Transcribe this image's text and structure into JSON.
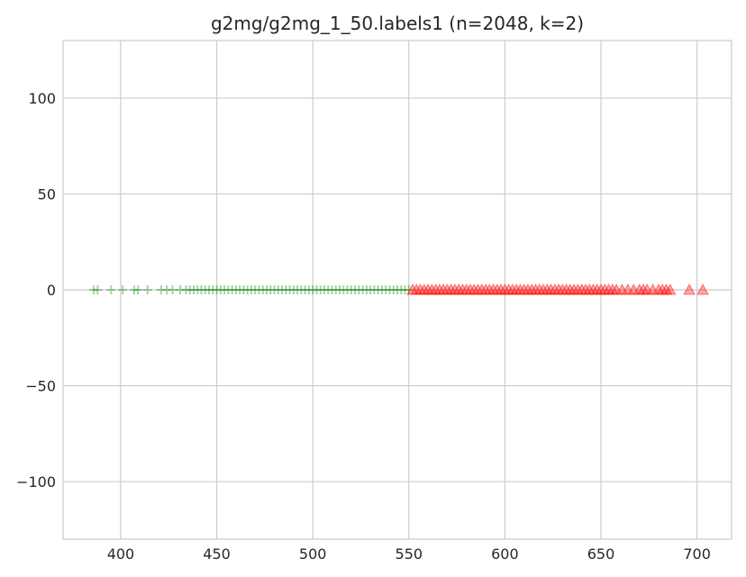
{
  "chart_data": {
    "type": "scatter",
    "title": "g2mg/g2mg_1_50.labels1 (n=2048, k=2)",
    "xlabel": "",
    "ylabel": "",
    "xlim": [
      370,
      718
    ],
    "ylim": [
      -130,
      130
    ],
    "x_ticks": [
      400,
      450,
      500,
      550,
      600,
      650,
      700
    ],
    "x_tick_labels": [
      "400",
      "450",
      "500",
      "550",
      "600",
      "650",
      "700"
    ],
    "y_ticks": [
      100,
      50,
      0,
      -50,
      -100
    ],
    "y_tick_labels": [
      "100",
      "50",
      "0",
      "−50",
      "−100"
    ],
    "grid": true,
    "legend": "none",
    "series": [
      {
        "marker": "plus",
        "color": "#008000",
        "opacity": 0.35,
        "y": 0,
        "x": [
          386,
          388,
          395,
          401,
          407,
          409,
          414,
          421,
          424,
          427,
          431,
          434,
          436,
          438,
          440,
          442,
          444,
          446,
          448,
          450,
          452,
          454,
          456,
          458,
          460,
          462,
          464,
          466,
          468,
          470,
          472,
          474,
          476,
          478,
          480,
          482,
          484,
          486,
          488,
          490,
          492,
          494,
          496,
          498,
          500,
          502,
          504,
          506,
          508,
          510,
          512,
          514,
          516,
          518,
          520,
          522,
          524,
          526,
          528,
          530,
          532,
          534,
          536,
          538,
          540,
          542,
          544,
          546,
          548,
          550
        ]
      },
      {
        "marker": "triangle",
        "color": "#ff0000",
        "opacity": 0.35,
        "y": 0,
        "x": [
          552,
          554,
          556,
          558,
          560,
          562,
          564,
          566,
          568,
          570,
          572,
          574,
          576,
          578,
          580,
          582,
          584,
          586,
          588,
          590,
          592,
          594,
          596,
          598,
          600,
          602,
          604,
          606,
          608,
          610,
          612,
          614,
          616,
          618,
          620,
          622,
          624,
          626,
          628,
          630,
          632,
          634,
          636,
          638,
          640,
          642,
          644,
          646,
          648,
          650,
          652,
          654,
          656,
          658,
          661,
          664,
          667,
          670,
          672,
          674,
          677,
          680,
          682,
          684,
          686,
          696,
          703
        ]
      }
    ]
  }
}
